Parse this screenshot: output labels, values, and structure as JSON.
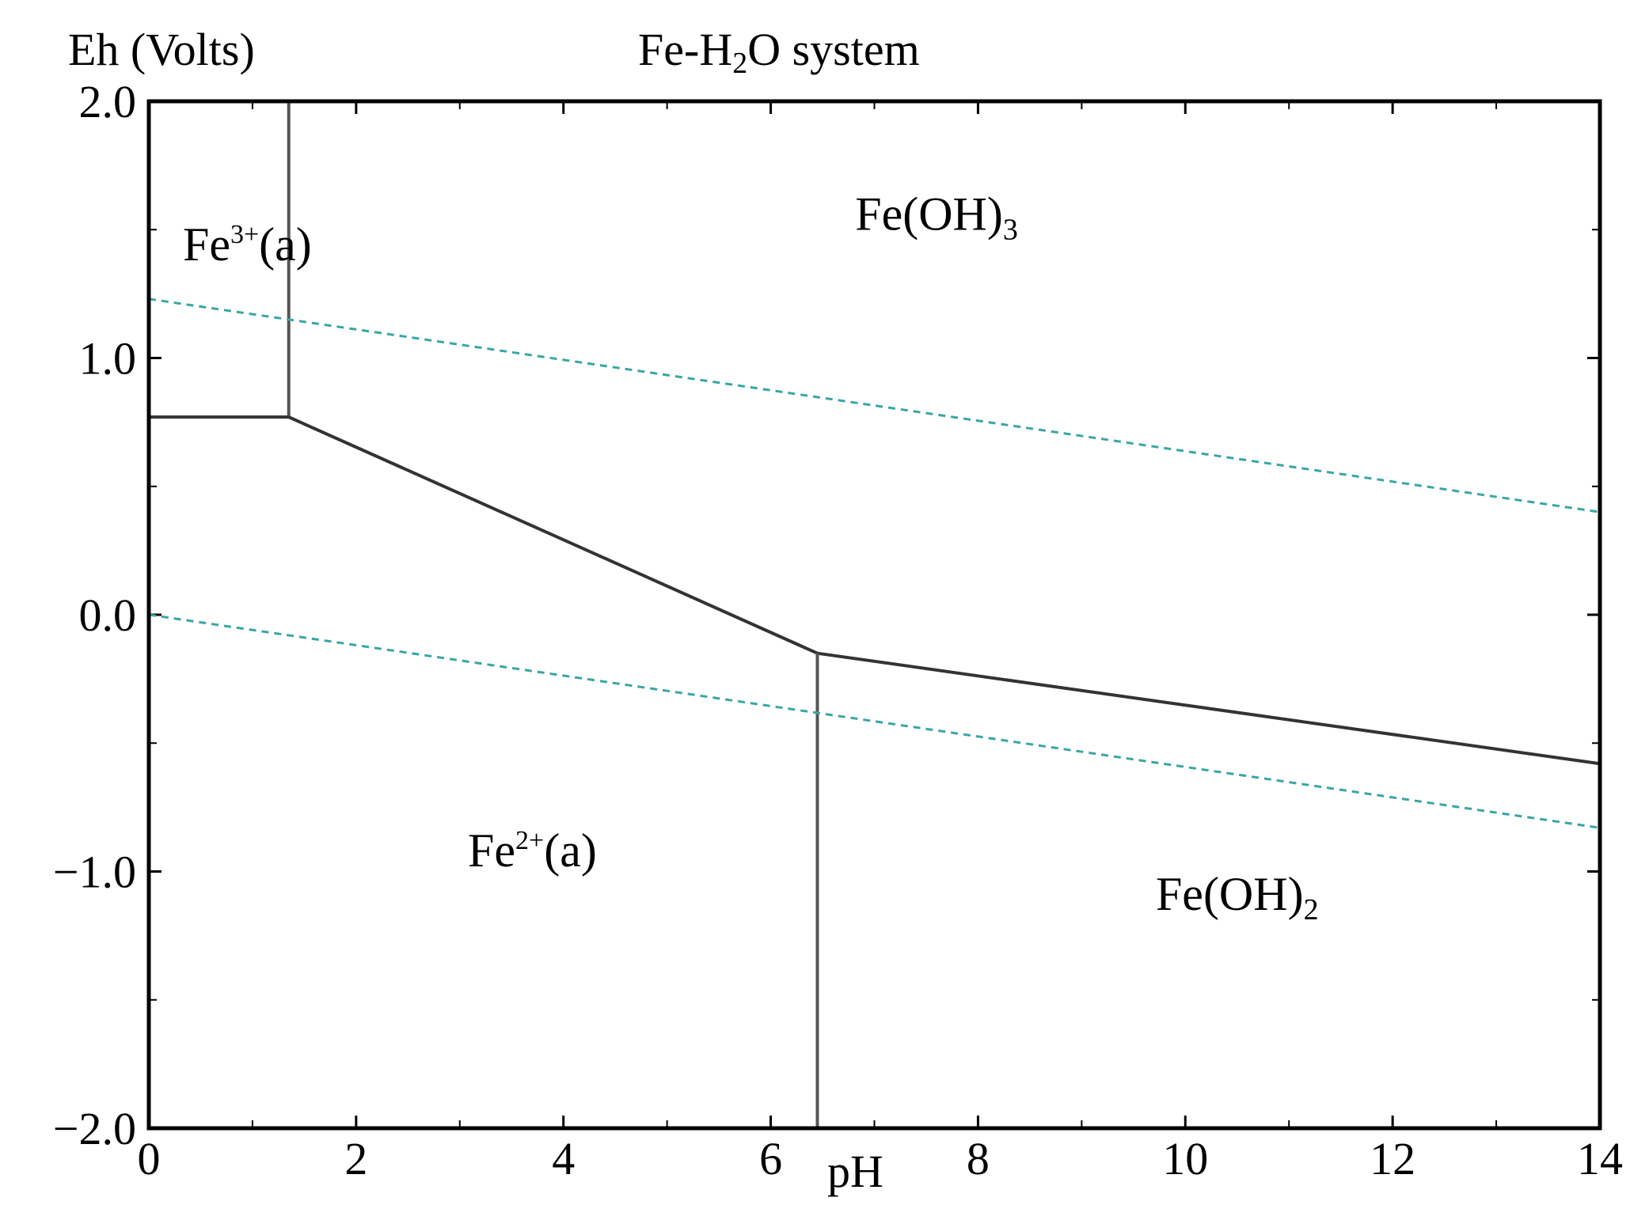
{
  "chart_data": {
    "type": "line",
    "title": {
      "pre": "Fe-H",
      "sub": "2",
      "post": "O system"
    },
    "ylabel": "Eh (Volts)",
    "xlabel": "pH",
    "xlim": [
      0,
      14
    ],
    "ylim": [
      -2.0,
      2.0
    ],
    "x_ticks": [
      {
        "value": 0,
        "label": "0"
      },
      {
        "value": 2,
        "label": "2"
      },
      {
        "value": 4,
        "label": "4"
      },
      {
        "value": 6,
        "label": "6"
      },
      {
        "value": 8,
        "label": "8"
      },
      {
        "value": 10,
        "label": "10"
      },
      {
        "value": 12,
        "label": "12"
      },
      {
        "value": 14,
        "label": "14"
      }
    ],
    "x_minor_ticks": [
      1,
      3,
      5,
      7,
      9,
      11,
      13
    ],
    "y_ticks": [
      {
        "value": 2.0,
        "label": "2.0"
      },
      {
        "value": 1.0,
        "label": "1.0"
      },
      {
        "value": 0.0,
        "label": "0.0"
      },
      {
        "value": -1.0,
        "label": "−1.0"
      },
      {
        "value": -2.0,
        "label": "−2.0"
      }
    ],
    "y_minor_ticks": [
      1.5,
      0.5,
      -0.5,
      -1.5
    ],
    "grid": false,
    "boundaries": [
      {
        "name": "Fe3+/Fe(OH)3",
        "style": "solid",
        "x": [
          1.35,
          1.35
        ],
        "y": [
          2.0,
          0.77
        ]
      },
      {
        "name": "Fe3+/Fe2+",
        "style": "solid",
        "x": [
          0,
          1.35
        ],
        "y": [
          0.77,
          0.77
        ]
      },
      {
        "name": "Fe(OH)3/Fe2+",
        "style": "solid",
        "x": [
          1.35,
          6.45
        ],
        "y": [
          0.77,
          -0.15
        ]
      },
      {
        "name": "Fe(OH)3/Fe(OH)2",
        "style": "solid",
        "x": [
          6.45,
          14
        ],
        "y": [
          -0.15,
          -0.58
        ]
      },
      {
        "name": "Fe2+/Fe(OH)2",
        "style": "solid",
        "x": [
          6.45,
          6.45
        ],
        "y": [
          -0.15,
          -2.0
        ]
      },
      {
        "name": "O2/H2O",
        "style": "dashed",
        "x": [
          0,
          14
        ],
        "y": [
          1.23,
          0.4
        ]
      },
      {
        "name": "H2O/H2",
        "style": "dashed",
        "x": [
          0,
          14
        ],
        "y": [
          0.0,
          -0.83
        ]
      }
    ],
    "regions": [
      {
        "base": "Fe",
        "sup": "3+",
        "sub": "",
        "suffix": "(a)",
        "x": 0.95,
        "y": 1.38
      },
      {
        "base": "Fe(OH)",
        "sup": "",
        "sub": "3",
        "suffix": "",
        "x": 7.6,
        "y": 1.5
      },
      {
        "base": "Fe",
        "sup": "2+",
        "sub": "",
        "suffix": "(a)",
        "x": 3.7,
        "y": -0.98
      },
      {
        "base": "Fe(OH)",
        "sup": "",
        "sub": "2",
        "suffix": "",
        "x": 10.5,
        "y": -1.15
      }
    ]
  },
  "colors": {
    "axis": "#000000",
    "boundary": "#333333",
    "vertical_boundary": "#555555",
    "water_line": "#3aa5a5"
  }
}
